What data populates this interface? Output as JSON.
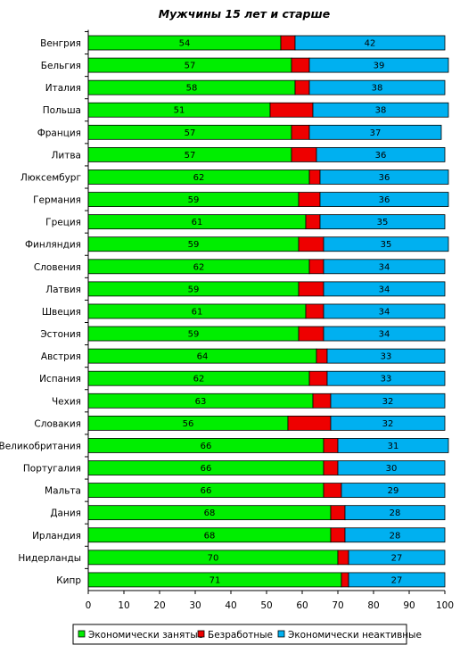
{
  "chart_data": {
    "type": "bar",
    "orientation": "horizontal",
    "stacked": true,
    "title": "Мужчины 15 лет и старше",
    "xlabel": "",
    "ylabel": "",
    "xlim": [
      0,
      100
    ],
    "xticks": [
      0,
      10,
      20,
      30,
      40,
      50,
      60,
      70,
      80,
      90,
      100
    ],
    "grid": false,
    "legend": "bottom",
    "categories": [
      "Венгрия",
      "Бельгия",
      "Италия",
      "Польша",
      "Франция",
      "Литва",
      "Люксембург",
      "Германия",
      "Греция",
      "Финляндия",
      "Словения",
      "Латвия",
      "Швеция",
      "Эстония",
      "Австрия",
      "Испания",
      "Чехия",
      "Словакия",
      "Великобритания",
      "Португалия",
      "Мальта",
      "Дания",
      "Ирландия",
      "Нидерланды",
      "Кипр"
    ],
    "series": [
      {
        "name": "Экономически занятые",
        "color": "#00ee00",
        "values": [
          54,
          57,
          58,
          51,
          57,
          57,
          62,
          59,
          61,
          59,
          62,
          59,
          61,
          59,
          64,
          62,
          63,
          56,
          66,
          66,
          66,
          68,
          68,
          70,
          71
        ],
        "labels": [
          "54",
          "57",
          "58",
          "51",
          "57",
          "57",
          "62",
          "59",
          "61",
          "59",
          "62",
          "59",
          "61",
          "59",
          "64",
          "62",
          "63",
          "56",
          "66",
          "66",
          "66",
          "68",
          "68",
          "70",
          "71"
        ]
      },
      {
        "name": "Безработные",
        "color": "#ee0000",
        "values": [
          4,
          5,
          4,
          12,
          5,
          7,
          3,
          6,
          4,
          7,
          4,
          7,
          5,
          7,
          3,
          5,
          5,
          12,
          4,
          4,
          5,
          4,
          4,
          3,
          2
        ],
        "labels": []
      },
      {
        "name": "Экономически неактивные",
        "color": "#00b0f0",
        "values": [
          42,
          39,
          38,
          38,
          37,
          36,
          36,
          36,
          35,
          35,
          34,
          34,
          34,
          34,
          33,
          33,
          32,
          32,
          31,
          30,
          29,
          28,
          28,
          27,
          27
        ],
        "labels": [
          "42",
          "39",
          "38",
          "38",
          "37",
          "36",
          "36",
          "36",
          "35",
          "35",
          "34",
          "34",
          "34",
          "34",
          "33",
          "33",
          "32",
          "32",
          "31",
          "30",
          "29",
          "28",
          "28",
          "27",
          "27"
        ]
      }
    ]
  }
}
